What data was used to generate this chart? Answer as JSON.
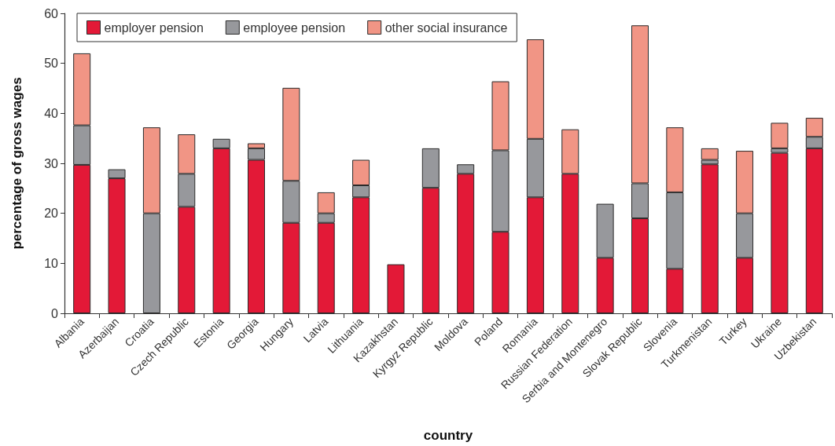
{
  "chart_data": {
    "type": "bar",
    "xlabel": "country",
    "ylabel": "percentage of gross wages",
    "categories": [
      "Albania",
      "Azerbaijan",
      "Croatia",
      "Czech Republic",
      "Estonia",
      "Georgia",
      "Hungary",
      "Latvia",
      "Lithuania",
      "Kazakhstan",
      "Kyrgyz Republic",
      "Moldova",
      "Poland",
      "Romania",
      "Russian Federation",
      "Serbia and Montenegro",
      "Slovak Republic",
      "Slovenia",
      "Turkmenistan",
      "Turkey",
      "Ukraine",
      "Uzbekistan"
    ],
    "series": [
      {
        "name": "employer pension",
        "color": "#e31937",
        "values": [
          29.7,
          27.0,
          null,
          21.3,
          33.0,
          30.7,
          18.1,
          18.1,
          23.2,
          9.8,
          25.1,
          27.9,
          16.3,
          23.2,
          27.9,
          11.1,
          19.0,
          8.9,
          29.8,
          11.1,
          32.1,
          33.0
        ]
      },
      {
        "name": "employee pension",
        "color": "#97989c",
        "values": [
          7.9,
          1.8,
          20.0,
          6.6,
          1.9,
          2.3,
          8.4,
          1.9,
          2.4,
          null,
          7.9,
          1.9,
          16.3,
          11.7,
          null,
          10.8,
          7.0,
          15.3,
          0.9,
          8.9,
          0.9,
          2.3
        ]
      },
      {
        "name": "other social insurance",
        "color": "#f19585",
        "values": [
          14.4,
          null,
          17.2,
          7.9,
          null,
          1.0,
          18.6,
          4.2,
          5.1,
          null,
          null,
          null,
          13.8,
          19.9,
          8.9,
          null,
          31.6,
          13.0,
          2.3,
          12.5,
          5.1,
          3.8
        ]
      }
    ],
    "stacked": true,
    "ylim": [
      0,
      60
    ],
    "yticks": [
      0,
      10,
      20,
      30,
      40,
      50,
      60
    ],
    "legend": "top left"
  }
}
